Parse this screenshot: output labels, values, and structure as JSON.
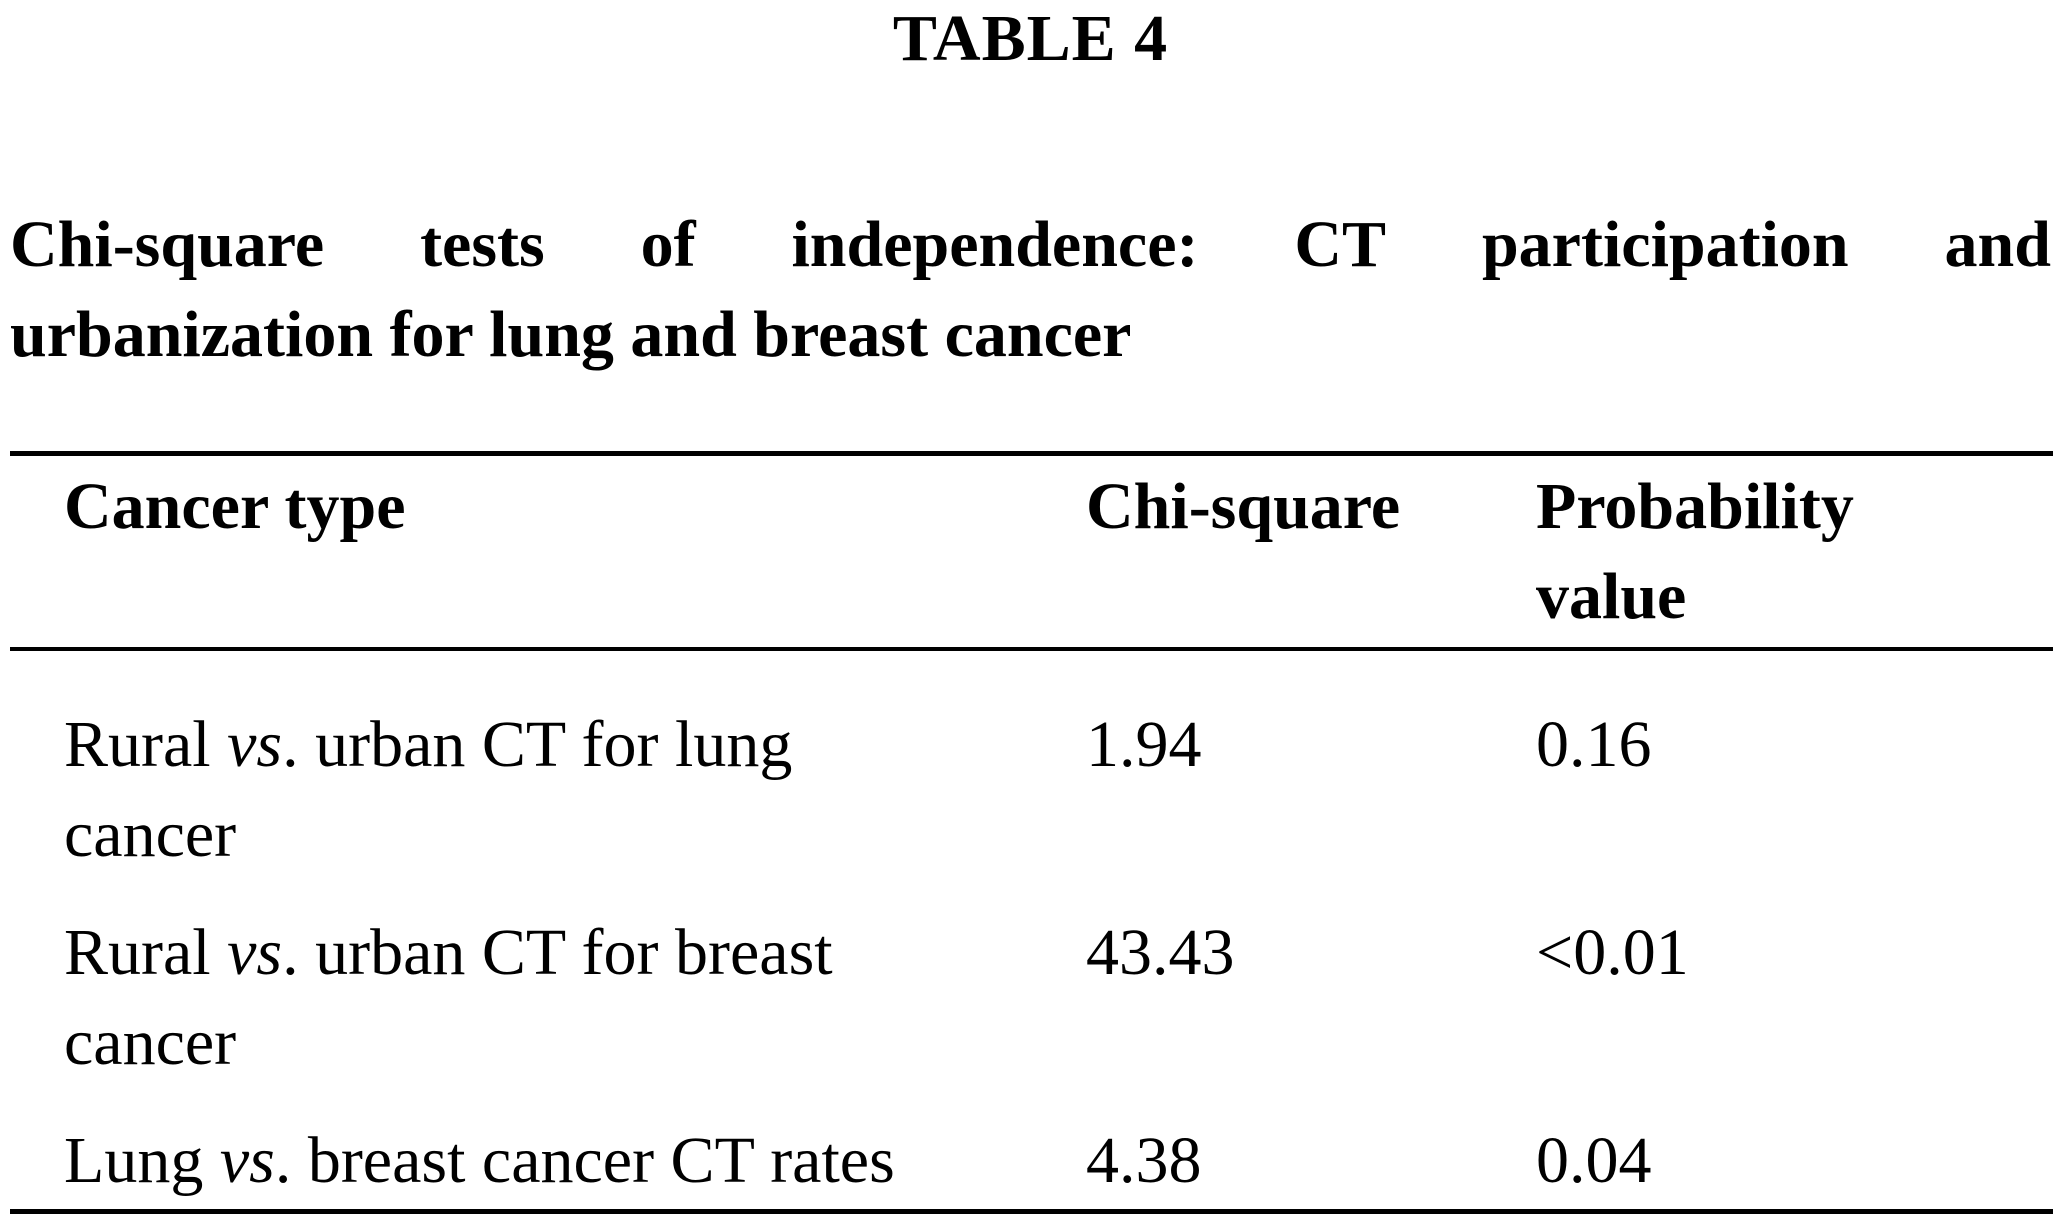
{
  "table_label": "TABLE 4",
  "caption": {
    "line1_words": [
      "Chi-square",
      "tests",
      "of",
      "independence:",
      "CT",
      "participation",
      "and"
    ],
    "line2": "urbanization for lung and breast cancer"
  },
  "table": {
    "headers": {
      "cancer_type": "Cancer type",
      "chi_square": "Chi-square",
      "probability_line1": "Probability",
      "probability_line2": "value"
    },
    "rows": [
      {
        "pre": "Rural ",
        "vs": "vs",
        "post_line1": ". urban CT for lung",
        "line2": "cancer",
        "chi_square": "1.94",
        "probability": "0.16"
      },
      {
        "pre": "Rural ",
        "vs": "vs",
        "post_line1": ". urban CT for breast",
        "line2": "cancer",
        "chi_square": "43.43",
        "probability": "<0.01"
      },
      {
        "pre": "Lung ",
        "vs": "vs",
        "post_line1": ". breast cancer CT rates",
        "line2": "",
        "chi_square": "4.38",
        "probability": "0.04"
      }
    ]
  }
}
